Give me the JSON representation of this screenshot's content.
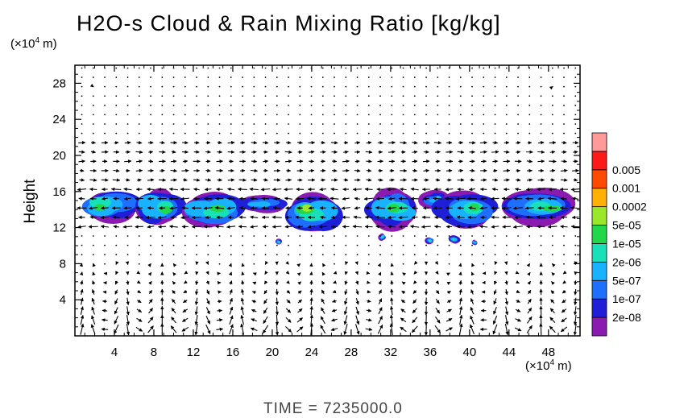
{
  "chart_data": {
    "type": "heatmap",
    "title": "H2O-s Cloud & Rain Mixing Ratio [kg/kg]",
    "ylabel": "Height",
    "y_unit_prefix": "(×10",
    "y_unit_exp": "4",
    "y_unit_suffix": " m)",
    "x_unit_prefix": "(×10",
    "x_unit_exp": "4",
    "x_unit_suffix": " m)",
    "xlim": [
      0,
      51.2
    ],
    "ylim": [
      0,
      30
    ],
    "xticks": [
      "4",
      "8",
      "12",
      "16",
      "20",
      "24",
      "28",
      "32",
      "36",
      "40",
      "44",
      "48"
    ],
    "yticks": [
      "4",
      "8",
      "12",
      "16",
      "20",
      "24",
      "28"
    ],
    "xtick_values": [
      4,
      8,
      12,
      16,
      20,
      24,
      28,
      32,
      36,
      40,
      44,
      48
    ],
    "ytick_values": [
      4,
      8,
      12,
      16,
      20,
      24,
      28
    ],
    "colorbar": {
      "labels": [
        "2e-08",
        "1e-07",
        "5e-07",
        "2e-06",
        "1e-05",
        "5e-05",
        "0.0002",
        "0.001",
        "0.005"
      ],
      "colors": [
        "#8a1ab0",
        "#1f1fd8",
        "#1f6fff",
        "#18b2ff",
        "#18e0b8",
        "#22d84a",
        "#9ae82a",
        "#ffb000",
        "#ff4a00",
        "#ff1a1a",
        "#ff9a9a"
      ]
    },
    "cloud_blobs": [
      {
        "x": [
          0.5,
          6.5
        ],
        "y": [
          12.8,
          16.0
        ],
        "level": 5
      },
      {
        "x": [
          6.0,
          11.0
        ],
        "y": [
          12.6,
          16.0
        ],
        "level": 5
      },
      {
        "x": [
          10.5,
          17.0
        ],
        "y": [
          12.2,
          15.6
        ],
        "level": 5
      },
      {
        "x": [
          16.5,
          21.5
        ],
        "y": [
          13.8,
          15.6
        ],
        "level": 3
      },
      {
        "x": [
          21.5,
          27.0
        ],
        "y": [
          11.8,
          15.6
        ],
        "level": 6
      },
      {
        "x": [
          29.5,
          35.0
        ],
        "y": [
          12.0,
          16.0
        ],
        "level": 5
      },
      {
        "x": [
          34.5,
          38.0
        ],
        "y": [
          14.2,
          16.0
        ],
        "level": 3
      },
      {
        "x": [
          36.5,
          42.5
        ],
        "y": [
          12.2,
          16.0
        ],
        "level": 5
      },
      {
        "x": [
          43.0,
          51.0
        ],
        "y": [
          12.4,
          16.0
        ],
        "level": 5
      },
      {
        "x": [
          20.3,
          21.0
        ],
        "y": [
          10.1,
          10.7
        ],
        "level": 4
      },
      {
        "x": [
          30.7,
          31.5
        ],
        "y": [
          10.6,
          11.3
        ],
        "level": 4
      },
      {
        "x": [
          35.4,
          36.5
        ],
        "y": [
          10.2,
          10.9
        ],
        "level": 4
      },
      {
        "x": [
          37.8,
          39.1
        ],
        "y": [
          10.3,
          11.1
        ],
        "level": 4
      },
      {
        "x": [
          40.2,
          40.8
        ],
        "y": [
          10.1,
          10.6
        ],
        "level": 3
      }
    ],
    "wind_vectors": "wind vectors overlaid on 44 x 29 grid"
  },
  "time": {
    "label": "TIME",
    "eq": "=",
    "value": "7235000.0"
  }
}
